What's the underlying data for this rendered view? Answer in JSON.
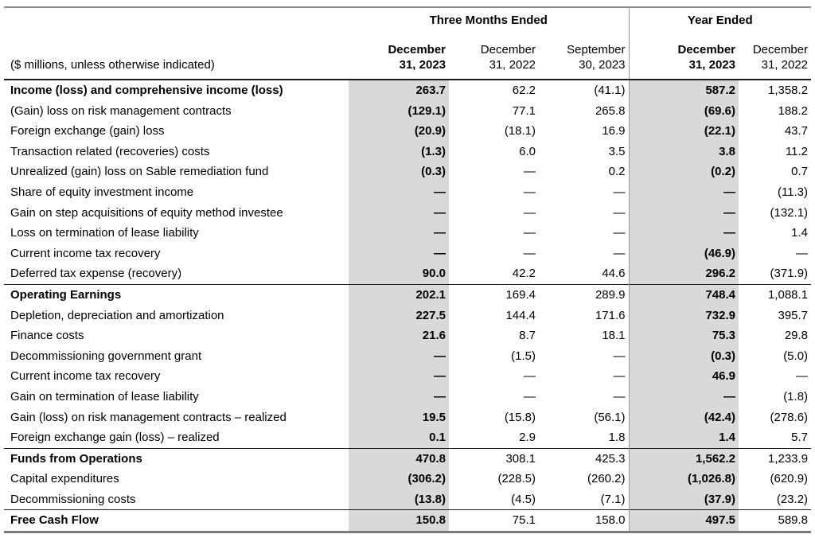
{
  "table": {
    "unit_note": "($ millions, unless otherwise indicated)",
    "groups": [
      {
        "label": "Three Months Ended",
        "span": 3
      },
      {
        "label": "Year Ended",
        "span": 2
      }
    ],
    "columns": [
      {
        "line1": "December",
        "line2": "31, 2023",
        "bold": true
      },
      {
        "line1": "December",
        "line2": "31, 2022",
        "bold": false
      },
      {
        "line1": "September",
        "line2": "30, 2023",
        "bold": false
      },
      {
        "line1": "December",
        "line2": "31, 2023",
        "bold": true
      },
      {
        "line1": "December",
        "line2": "31, 2022",
        "bold": false
      }
    ],
    "rows": [
      {
        "label": "Income (loss) and comprehensive income (loss)",
        "bold": true,
        "section": false,
        "values": [
          "263.7",
          "62.2",
          "(41.1)",
          "587.2",
          "1,358.2"
        ]
      },
      {
        "label": "(Gain) loss on risk management contracts",
        "bold": false,
        "section": false,
        "values": [
          "(129.1)",
          "77.1",
          "265.8",
          "(69.6)",
          "188.2"
        ]
      },
      {
        "label": "Foreign exchange (gain) loss",
        "bold": false,
        "section": false,
        "values": [
          "(20.9)",
          "(18.1)",
          "16.9",
          "(22.1)",
          "43.7"
        ]
      },
      {
        "label": "Transaction related (recoveries) costs",
        "bold": false,
        "section": false,
        "values": [
          "(1.3)",
          "6.0",
          "3.5",
          "3.8",
          "11.2"
        ]
      },
      {
        "label": "Unrealized (gain) loss on Sable remediation fund",
        "bold": false,
        "section": false,
        "values": [
          "(0.3)",
          "—",
          "0.2",
          "(0.2)",
          "0.7"
        ]
      },
      {
        "label": "Share of equity investment income",
        "bold": false,
        "section": false,
        "values": [
          "—",
          "—",
          "—",
          "—",
          "(11.3)"
        ]
      },
      {
        "label": "Gain on step acquisitions of equity method investee",
        "bold": false,
        "section": false,
        "values": [
          "—",
          "—",
          "—",
          "—",
          "(132.1)"
        ]
      },
      {
        "label": "Loss on termination of lease liability",
        "bold": false,
        "section": false,
        "values": [
          "—",
          "—",
          "—",
          "—",
          "1.4"
        ]
      },
      {
        "label": "Current income tax recovery",
        "bold": false,
        "section": false,
        "values": [
          "—",
          "—",
          "—",
          "(46.9)",
          "—"
        ]
      },
      {
        "label": "Deferred tax expense (recovery)",
        "bold": false,
        "section": false,
        "values": [
          "90.0",
          "42.2",
          "44.6",
          "296.2",
          "(371.9)"
        ]
      },
      {
        "label": "Operating Earnings",
        "bold": true,
        "section": true,
        "values": [
          "202.1",
          "169.4",
          "289.9",
          "748.4",
          "1,088.1"
        ]
      },
      {
        "label": "Depletion, depreciation and amortization",
        "bold": false,
        "section": false,
        "values": [
          "227.5",
          "144.4",
          "171.6",
          "732.9",
          "395.7"
        ]
      },
      {
        "label": "Finance costs",
        "bold": false,
        "section": false,
        "values": [
          "21.6",
          "8.7",
          "18.1",
          "75.3",
          "29.8"
        ]
      },
      {
        "label": "Decommissioning government grant",
        "bold": false,
        "section": false,
        "values": [
          "—",
          "(1.5)",
          "—",
          "(0.3)",
          "(5.0)"
        ]
      },
      {
        "label": "Current income tax recovery",
        "bold": false,
        "section": false,
        "values": [
          "—",
          "—",
          "—",
          "46.9",
          "—"
        ]
      },
      {
        "label": "Gain on termination of lease liability",
        "bold": false,
        "section": false,
        "values": [
          "—",
          "—",
          "—",
          "—",
          "(1.8)"
        ]
      },
      {
        "label": "Gain (loss) on risk management contracts – realized",
        "bold": false,
        "section": false,
        "values": [
          "19.5",
          "(15.8)",
          "(56.1)",
          "(42.4)",
          "(278.6)"
        ]
      },
      {
        "label": "Foreign exchange gain (loss) – realized",
        "bold": false,
        "section": false,
        "values": [
          "0.1",
          "2.9",
          "1.8",
          "1.4",
          "5.7"
        ]
      },
      {
        "label": "Funds from Operations",
        "bold": true,
        "section": true,
        "values": [
          "470.8",
          "308.1",
          "425.3",
          "1,562.2",
          "1,233.9"
        ]
      },
      {
        "label": "Capital expenditures",
        "bold": false,
        "section": false,
        "values": [
          "(306.2)",
          "(228.5)",
          "(260.2)",
          "(1,026.8)",
          "(620.9)"
        ]
      },
      {
        "label": "Decommissioning costs",
        "bold": false,
        "section": false,
        "values": [
          "(13.8)",
          "(4.5)",
          "(7.1)",
          "(37.9)",
          "(23.2)"
        ]
      },
      {
        "label": "Free Cash Flow",
        "bold": true,
        "section": true,
        "values": [
          "150.8",
          "75.1",
          "158.0",
          "497.5",
          "589.8"
        ]
      }
    ]
  },
  "colors": {
    "highlight_band": "#d9d9d9",
    "top_rule": "#8c8c8c",
    "bottom_rule": "#7a7a7a",
    "dark_rule": "#1a1a1a",
    "group_divider": "#999999",
    "text": "#000000"
  }
}
